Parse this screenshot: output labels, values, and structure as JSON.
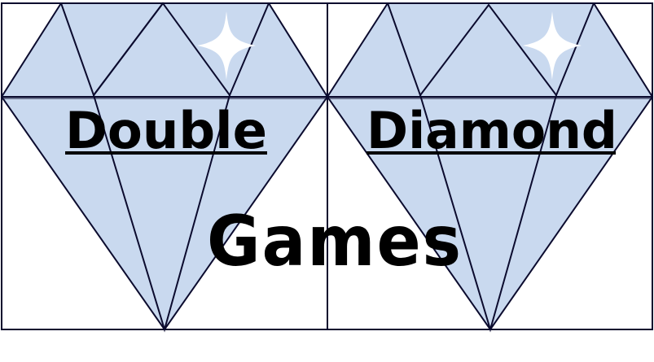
{
  "logo": {
    "line1_left": "Double",
    "line1_right": "Diamond",
    "line2": "Games"
  },
  "colors": {
    "diamond_fill": "#c9d9ef",
    "outline": "#0b0b2e",
    "sparkle": "#ffffff",
    "text": "#000000",
    "background": "#ffffff"
  },
  "icons": [
    "diamond-icon",
    "diamond-icon",
    "sparkle-icon",
    "sparkle-icon"
  ]
}
